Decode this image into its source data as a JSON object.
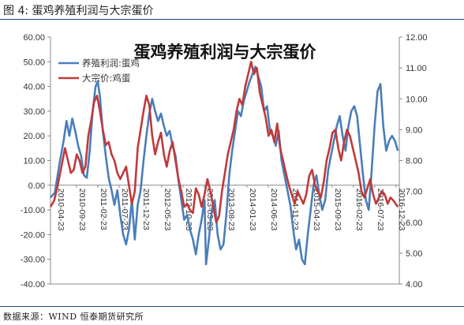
{
  "figure_label": "图 4:  蛋鸡养殖利润与大宗蛋价",
  "source": "数据来源：WIND  恒泰期货研究所",
  "chart_data": {
    "type": "line",
    "title": "蛋鸡养殖利润与大宗蛋价",
    "legend_position": "top-left",
    "grid": false,
    "y_left": {
      "range": [
        -40,
        60
      ],
      "ticks": [
        "60.00",
        "50.00",
        "40.00",
        "30.00",
        "20.00",
        "10.00",
        "0.00",
        "-10.00",
        "-20.00",
        "-30.00",
        "-40.00"
      ]
    },
    "y_right": {
      "range": [
        4,
        12
      ],
      "ticks": [
        "12.00",
        "11.00",
        "10.00",
        "9.00",
        "8.00",
        "7.00",
        "6.00",
        "5.00",
        "4.00"
      ]
    },
    "x_ticks": [
      "2010-04-23",
      "2010-09-23",
      "2011-02-23",
      "2011-07-23",
      "2011-12-23",
      "2012-05-23",
      "2012-10-23",
      "2013-03-23",
      "2013-08-23",
      "2014-01-23",
      "2014-06-23",
      "2014-11-23",
      "2015-04-23",
      "2015-09-23",
      "2016-02-23",
      "2016-07-23",
      "2016-12-23"
    ],
    "series": [
      {
        "name": "养殖利润:蛋鸡",
        "axis": "left",
        "color": "#4a7ebb",
        "points": [
          [
            0,
            -5
          ],
          [
            0.6,
            -3
          ],
          [
            1.2,
            8
          ],
          [
            1.8,
            18
          ],
          [
            2.2,
            26
          ],
          [
            2.6,
            20
          ],
          [
            3.0,
            27
          ],
          [
            3.4,
            22
          ],
          [
            3.8,
            16
          ],
          [
            4.2,
            12
          ],
          [
            4.6,
            4
          ],
          [
            5.0,
            3
          ],
          [
            5.4,
            14
          ],
          [
            5.8,
            30
          ],
          [
            6.2,
            40
          ],
          [
            6.5,
            42
          ],
          [
            6.8,
            36
          ],
          [
            7.2,
            22
          ],
          [
            7.6,
            12
          ],
          [
            8.0,
            3
          ],
          [
            8.4,
            -2
          ],
          [
            8.8,
            -8
          ],
          [
            9.2,
            -2
          ],
          [
            9.6,
            -12
          ],
          [
            10.0,
            -20
          ],
          [
            10.4,
            -24
          ],
          [
            10.8,
            -18
          ],
          [
            11.2,
            -6
          ],
          [
            11.6,
            -22
          ],
          [
            12.0,
            -8
          ],
          [
            12.4,
            -2
          ],
          [
            12.8,
            10
          ],
          [
            13.2,
            20
          ],
          [
            13.6,
            29
          ],
          [
            14.0,
            35
          ],
          [
            14.4,
            30
          ],
          [
            14.8,
            26
          ],
          [
            15.2,
            29
          ],
          [
            15.6,
            24
          ],
          [
            16.0,
            20
          ],
          [
            16.4,
            22
          ],
          [
            16.8,
            16
          ],
          [
            17.2,
            12
          ],
          [
            17.6,
            2
          ],
          [
            18.0,
            -6
          ],
          [
            18.4,
            -14
          ],
          [
            18.8,
            -12
          ],
          [
            19.2,
            -18
          ],
          [
            19.6,
            -22
          ],
          [
            20.0,
            -28
          ],
          [
            20.4,
            -20
          ],
          [
            20.8,
            -14
          ],
          [
            21.2,
            -6
          ],
          [
            21.4,
            -32
          ],
          [
            21.8,
            -22
          ],
          [
            22.2,
            -10
          ],
          [
            22.6,
            -6
          ],
          [
            23.0,
            -20
          ],
          [
            23.4,
            -26
          ],
          [
            23.8,
            -24
          ],
          [
            24.2,
            -12
          ],
          [
            24.6,
            4
          ],
          [
            25.0,
            14
          ],
          [
            25.4,
            22
          ],
          [
            25.8,
            30
          ],
          [
            26.2,
            28
          ],
          [
            26.6,
            34
          ],
          [
            27.0,
            38
          ],
          [
            27.4,
            42
          ],
          [
            27.8,
            45
          ],
          [
            28.2,
            48
          ],
          [
            28.6,
            44
          ],
          [
            29.0,
            40
          ],
          [
            29.4,
            30
          ],
          [
            29.8,
            32
          ],
          [
            30.2,
            22
          ],
          [
            30.6,
            20
          ],
          [
            31.0,
            16
          ],
          [
            31.4,
            22
          ],
          [
            31.8,
            10
          ],
          [
            32.2,
            4
          ],
          [
            32.6,
            -2
          ],
          [
            33.0,
            -8
          ],
          [
            33.4,
            -18
          ],
          [
            33.8,
            -26
          ],
          [
            34.2,
            -22
          ],
          [
            34.6,
            -30
          ],
          [
            35.0,
            -32
          ],
          [
            35.4,
            -20
          ],
          [
            35.8,
            -10
          ],
          [
            36.2,
            0
          ],
          [
            36.6,
            4
          ],
          [
            37.0,
            -4
          ],
          [
            37.4,
            -10
          ],
          [
            37.8,
            -6
          ],
          [
            38.2,
            6
          ],
          [
            38.6,
            12
          ],
          [
            39.0,
            18
          ],
          [
            39.4,
            24
          ],
          [
            39.8,
            28
          ],
          [
            40.2,
            20
          ],
          [
            40.6,
            14
          ],
          [
            41.0,
            24
          ],
          [
            41.4,
            30
          ],
          [
            41.8,
            32
          ],
          [
            42.2,
            28
          ],
          [
            42.6,
            16
          ],
          [
            43.0,
            4
          ],
          [
            43.4,
            -6
          ],
          [
            43.8,
            -10
          ],
          [
            44.2,
            6
          ],
          [
            44.6,
            24
          ],
          [
            45.0,
            38
          ],
          [
            45.4,
            41
          ],
          [
            45.8,
            24
          ],
          [
            46.2,
            14
          ],
          [
            46.6,
            18
          ],
          [
            47.0,
            20
          ],
          [
            47.4,
            18
          ],
          [
            47.8,
            14
          ]
        ]
      },
      {
        "name": "大宗价:鸡蛋",
        "axis": "right",
        "color": "#c0393b",
        "points": [
          [
            0,
            6.5
          ],
          [
            0.5,
            6.7
          ],
          [
            1.0,
            7.2
          ],
          [
            1.5,
            7.8
          ],
          [
            2.0,
            8.4
          ],
          [
            2.4,
            8.0
          ],
          [
            2.8,
            7.6
          ],
          [
            3.2,
            7.7
          ],
          [
            3.6,
            8.2
          ],
          [
            4.0,
            8.0
          ],
          [
            4.4,
            7.6
          ],
          [
            4.8,
            7.8
          ],
          [
            5.2,
            8.8
          ],
          [
            5.6,
            9.3
          ],
          [
            6.0,
            9.9
          ],
          [
            6.4,
            10.1
          ],
          [
            6.8,
            9.6
          ],
          [
            7.2,
            9.0
          ],
          [
            7.6,
            8.5
          ],
          [
            8.0,
            8.6
          ],
          [
            8.4,
            8.2
          ],
          [
            8.8,
            8.0
          ],
          [
            9.2,
            7.6
          ],
          [
            9.6,
            7.4
          ],
          [
            10.0,
            7.6
          ],
          [
            10.4,
            7.8
          ],
          [
            10.8,
            7.2
          ],
          [
            11.2,
            6.6
          ],
          [
            11.6,
            7.0
          ],
          [
            12.0,
            8.4
          ],
          [
            12.4,
            9.0
          ],
          [
            12.8,
            9.6
          ],
          [
            13.2,
            10.1
          ],
          [
            13.6,
            9.8
          ],
          [
            14.0,
            8.8
          ],
          [
            14.4,
            8.2
          ],
          [
            14.8,
            8.6
          ],
          [
            15.2,
            8.9
          ],
          [
            15.6,
            8.2
          ],
          [
            16.0,
            7.8
          ],
          [
            16.4,
            8.3
          ],
          [
            16.8,
            8.6
          ],
          [
            17.2,
            8.0
          ],
          [
            17.6,
            7.4
          ],
          [
            18.0,
            7.0
          ],
          [
            18.4,
            6.5
          ],
          [
            18.8,
            6.6
          ],
          [
            19.2,
            6.4
          ],
          [
            19.6,
            6.3
          ],
          [
            20.0,
            7.1
          ],
          [
            20.4,
            6.9
          ],
          [
            20.8,
            6.5
          ],
          [
            21.2,
            6.9
          ],
          [
            21.6,
            7.4
          ],
          [
            22.0,
            7.0
          ],
          [
            22.4,
            6.5
          ],
          [
            22.8,
            6.0
          ],
          [
            23.2,
            6.2
          ],
          [
            23.6,
            7.0
          ],
          [
            24.0,
            7.6
          ],
          [
            24.4,
            8.2
          ],
          [
            24.8,
            8.6
          ],
          [
            25.2,
            9.0
          ],
          [
            25.6,
            9.6
          ],
          [
            26.0,
            10.0
          ],
          [
            26.4,
            9.8
          ],
          [
            26.8,
            10.4
          ],
          [
            27.2,
            10.8
          ],
          [
            27.6,
            11.2
          ],
          [
            28.0,
            10.8
          ],
          [
            28.4,
            11.0
          ],
          [
            28.8,
            10.2
          ],
          [
            29.2,
            9.8
          ],
          [
            29.6,
            9.4
          ],
          [
            30.0,
            8.8
          ],
          [
            30.4,
            9.0
          ],
          [
            30.8,
            8.6
          ],
          [
            31.2,
            9.2
          ],
          [
            31.6,
            8.4
          ],
          [
            32.0,
            8.0
          ],
          [
            32.4,
            7.6
          ],
          [
            32.8,
            7.2
          ],
          [
            33.2,
            6.9
          ],
          [
            33.6,
            6.6
          ],
          [
            34.0,
            7.0
          ],
          [
            34.4,
            6.8
          ],
          [
            34.8,
            6.6
          ],
          [
            35.2,
            6.9
          ],
          [
            35.6,
            7.5
          ],
          [
            36.0,
            7.7
          ],
          [
            36.4,
            7.2
          ],
          [
            36.8,
            7.0
          ],
          [
            37.2,
            6.8
          ],
          [
            37.6,
            7.3
          ],
          [
            38.0,
            8.0
          ],
          [
            38.4,
            8.4
          ],
          [
            38.8,
            8.9
          ],
          [
            39.2,
            9.0
          ],
          [
            39.6,
            8.4
          ],
          [
            40.0,
            8.0
          ],
          [
            40.4,
            8.6
          ],
          [
            40.8,
            9.0
          ],
          [
            41.2,
            8.8
          ],
          [
            41.6,
            8.4
          ],
          [
            42.0,
            8.0
          ],
          [
            42.4,
            7.6
          ],
          [
            42.8,
            7.0
          ],
          [
            43.2,
            6.8
          ],
          [
            43.6,
            7.1
          ],
          [
            44.0,
            7.4
          ],
          [
            44.4,
            6.9
          ],
          [
            44.8,
            6.6
          ],
          [
            45.2,
            6.8
          ],
          [
            45.6,
            7.0
          ],
          [
            46.0,
            6.9
          ],
          [
            46.4,
            6.6
          ],
          [
            46.8,
            6.8
          ],
          [
            47.2,
            6.7
          ],
          [
            47.8,
            6.5
          ]
        ]
      }
    ]
  }
}
